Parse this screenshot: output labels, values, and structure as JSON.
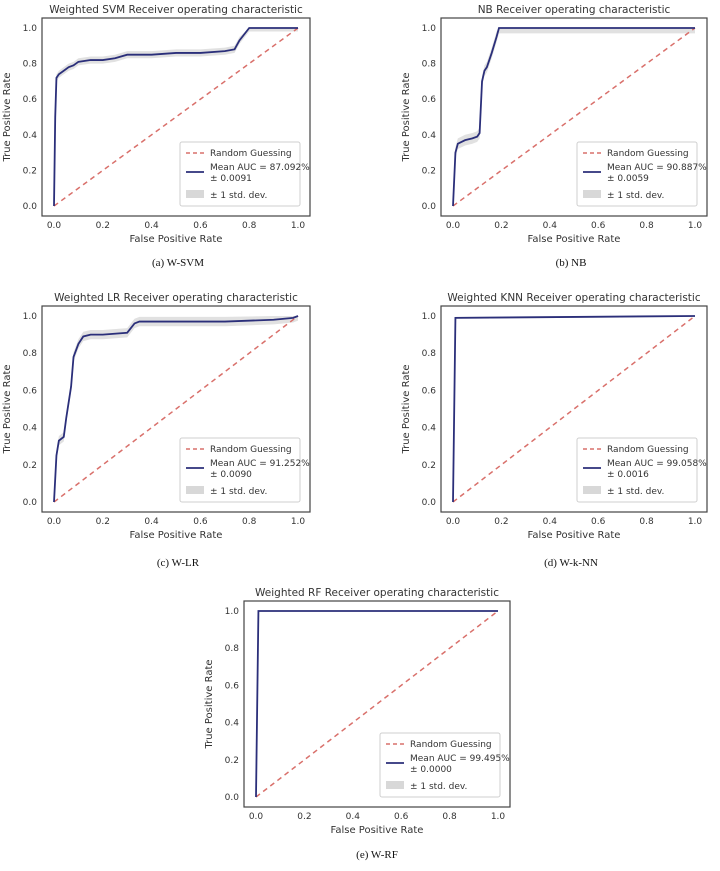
{
  "chart_data": [
    {
      "id": "a",
      "type": "line",
      "title": "Weighted SVM Receiver operating characteristic",
      "caption": "(a) W-SVM",
      "xlabel": "False Positive Rate",
      "ylabel": "True Positive Rate",
      "xlim": [
        0.0,
        1.0
      ],
      "ylim": [
        0.0,
        1.0
      ],
      "grid": false,
      "xticks": [
        "0.0",
        "0.2",
        "0.4",
        "0.6",
        "0.8",
        "1.0"
      ],
      "yticks": [
        "0.0",
        "0.2",
        "0.4",
        "0.6",
        "0.8",
        "1.0"
      ],
      "legend_position": "lower-right",
      "legend": {
        "random": "Random Guessing",
        "mean_line1": "Mean AUC = 87.092%",
        "mean_line2": "± 0.0091",
        "std": "± 1 std. dev."
      },
      "random_line": {
        "x": [
          0,
          1
        ],
        "y": [
          0,
          1
        ]
      },
      "mean_curve": {
        "x": [
          0,
          0.005,
          0.01,
          0.02,
          0.04,
          0.06,
          0.08,
          0.1,
          0.15,
          0.2,
          0.25,
          0.3,
          0.4,
          0.5,
          0.6,
          0.7,
          0.74,
          0.76,
          0.8,
          0.85,
          0.9,
          0.95,
          1.0
        ],
        "y": [
          0,
          0.5,
          0.72,
          0.74,
          0.76,
          0.78,
          0.79,
          0.81,
          0.82,
          0.82,
          0.83,
          0.85,
          0.85,
          0.86,
          0.86,
          0.87,
          0.88,
          0.93,
          1.0,
          1.0,
          1.0,
          1.0,
          1.0
        ]
      },
      "std_dev": 0.02
    },
    {
      "id": "b",
      "type": "line",
      "title": "NB Receiver operating characteristic",
      "caption": "(b) NB",
      "xlabel": "False Positive Rate",
      "ylabel": "True Positive Rate",
      "xlim": [
        0.0,
        1.0
      ],
      "ylim": [
        0.0,
        1.0
      ],
      "grid": false,
      "xticks": [
        "0.0",
        "0.2",
        "0.4",
        "0.6",
        "0.8",
        "1.0"
      ],
      "yticks": [
        "0.0",
        "0.2",
        "0.4",
        "0.6",
        "0.8",
        "1.0"
      ],
      "legend_position": "lower-right",
      "legend": {
        "random": "Random Guessing",
        "mean_line1": "Mean AUC = 90.887%",
        "mean_line2": "± 0.0059",
        "std": "± 1 std. dev."
      },
      "random_line": {
        "x": [
          0,
          1
        ],
        "y": [
          0,
          1
        ]
      },
      "mean_curve": {
        "x": [
          0,
          0.01,
          0.02,
          0.05,
          0.08,
          0.1,
          0.11,
          0.12,
          0.13,
          0.14,
          0.16,
          0.18,
          0.19,
          0.3,
          0.6,
          1.0
        ],
        "y": [
          0,
          0.3,
          0.35,
          0.37,
          0.38,
          0.39,
          0.41,
          0.7,
          0.76,
          0.78,
          0.86,
          0.95,
          1.0,
          1.0,
          1.0,
          1.0
        ]
      },
      "std_dev": 0.03
    },
    {
      "id": "c",
      "type": "line",
      "title": "Weighted LR Receiver operating characteristic",
      "caption": "(c) W-LR",
      "xlabel": "False Positive Rate",
      "ylabel": "True Positive Rate",
      "xlim": [
        0.0,
        1.0
      ],
      "ylim": [
        0.0,
        1.0
      ],
      "grid": false,
      "xticks": [
        "0.0",
        "0.2",
        "0.4",
        "0.6",
        "0.8",
        "1.0"
      ],
      "yticks": [
        "0.0",
        "0.2",
        "0.4",
        "0.6",
        "0.8",
        "1.0"
      ],
      "legend_position": "lower-right",
      "legend": {
        "random": "Random Guessing",
        "mean_line1": "Mean AUC = 91.252%",
        "mean_line2": "± 0.0090",
        "std": "± 1 std. dev."
      },
      "random_line": {
        "x": [
          0,
          1
        ],
        "y": [
          0,
          1
        ]
      },
      "mean_curve": {
        "x": [
          0,
          0.01,
          0.02,
          0.04,
          0.05,
          0.07,
          0.08,
          0.1,
          0.12,
          0.15,
          0.2,
          0.3,
          0.33,
          0.35,
          0.5,
          0.7,
          0.9,
          0.98,
          1.0
        ],
        "y": [
          0,
          0.25,
          0.33,
          0.35,
          0.45,
          0.62,
          0.78,
          0.85,
          0.89,
          0.9,
          0.9,
          0.91,
          0.96,
          0.97,
          0.97,
          0.97,
          0.98,
          0.99,
          1.0
        ]
      },
      "std_dev": 0.025
    },
    {
      "id": "d",
      "type": "line",
      "title": "Weighted KNN Receiver operating characteristic",
      "caption": "(d) W-k-NN",
      "xlabel": "False Positive Rate",
      "ylabel": "True Positive Rate",
      "xlim": [
        0.0,
        1.0
      ],
      "ylim": [
        0.0,
        1.0
      ],
      "grid": false,
      "xticks": [
        "0.0",
        "0.2",
        "0.4",
        "0.6",
        "0.8",
        "1.0"
      ],
      "yticks": [
        "0.0",
        "0.2",
        "0.4",
        "0.6",
        "0.8",
        "1.0"
      ],
      "legend_position": "lower-right",
      "legend": {
        "random": "Random Guessing",
        "mean_line1": "Mean AUC = 99.058%",
        "mean_line2": "± 0.0016",
        "std": "± 1 std. dev."
      },
      "random_line": {
        "x": [
          0,
          1
        ],
        "y": [
          0,
          1
        ]
      },
      "mean_curve": {
        "x": [
          0,
          0.01,
          0.5,
          1.0
        ],
        "y": [
          0,
          0.99,
          0.995,
          1.0
        ]
      },
      "std_dev": 0.005
    },
    {
      "id": "e",
      "type": "line",
      "title": "Weighted RF Receiver operating characteristic",
      "caption": "(e) W-RF",
      "xlabel": "False Positive Rate",
      "ylabel": "True Positive Rate",
      "xlim": [
        0.0,
        1.0
      ],
      "ylim": [
        0.0,
        1.0
      ],
      "grid": false,
      "xticks": [
        "0.0",
        "0.2",
        "0.4",
        "0.6",
        "0.8",
        "1.0"
      ],
      "yticks": [
        "0.0",
        "0.2",
        "0.4",
        "0.6",
        "0.8",
        "1.0"
      ],
      "legend_position": "lower-right",
      "legend": {
        "random": "Random Guessing",
        "mean_line1": "Mean AUC = 99.495%",
        "mean_line2": "± 0.0000",
        "std": "± 1 std. dev."
      },
      "random_line": {
        "x": [
          0,
          1
        ],
        "y": [
          0,
          1
        ]
      },
      "mean_curve": {
        "x": [
          0,
          0.01,
          1.0
        ],
        "y": [
          0,
          1.0,
          1.0
        ]
      },
      "std_dev": 0.003
    }
  ],
  "colors": {
    "mean_line": "#2b2f7a",
    "random_line": "#d9706b",
    "std_fill": "#c8c8c8",
    "frame": "#444444"
  }
}
